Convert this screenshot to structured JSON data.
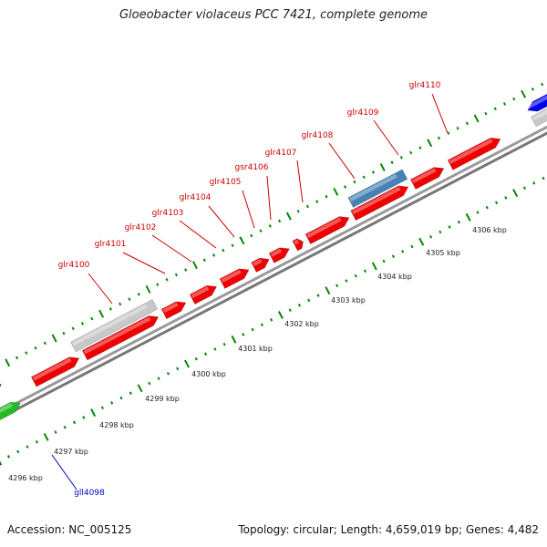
{
  "title": "Gloeobacter violaceus PCC 7421, complete genome",
  "footer": {
    "accession": "Accession: NC_005125",
    "summary": "Topology: circular; Length: 4,659,019 bp; Genes: 4,482"
  },
  "scale": {
    "unit": "kbp",
    "labels": [
      "4296 kbp",
      "4297 kbp",
      "4298 kbp",
      "4299 kbp",
      "4300 kbp",
      "4301 kbp",
      "4302 kbp",
      "4303 kbp",
      "4304 kbp",
      "4305 kbp",
      "4306 kbp"
    ]
  },
  "colors": {
    "red_gene": "#ee0000",
    "blue_gene": "#0000ee",
    "green_gene": "#22bb22",
    "steelblue_gene": "#4682b4",
    "gray_feature": "#c8c8c8",
    "backbone": "#888888",
    "tick": "#008800",
    "red_label": "#cc0000",
    "blue_label": "#0000cc"
  },
  "genes": [
    {
      "name": "glr4100",
      "color": "red",
      "label_color": "red"
    },
    {
      "name": "glr4101",
      "color": "red",
      "label_color": "red"
    },
    {
      "name": "glr4102",
      "color": "red",
      "label_color": "red"
    },
    {
      "name": "glr4103",
      "color": "red",
      "label_color": "red"
    },
    {
      "name": "glr4104",
      "color": "red",
      "label_color": "red"
    },
    {
      "name": "glr4105",
      "color": "red",
      "label_color": "red"
    },
    {
      "name": "gsr4106",
      "color": "red",
      "label_color": "red"
    },
    {
      "name": "glr4107",
      "color": "red",
      "label_color": "red"
    },
    {
      "name": "glr4108",
      "color": "red",
      "label_color": "red"
    },
    {
      "name": "glr4109",
      "color": "red",
      "label_color": "red"
    },
    {
      "name": "glr4110",
      "color": "red",
      "label_color": "red"
    },
    {
      "name": "gll4098",
      "color": "green",
      "label_color": "blue"
    }
  ]
}
